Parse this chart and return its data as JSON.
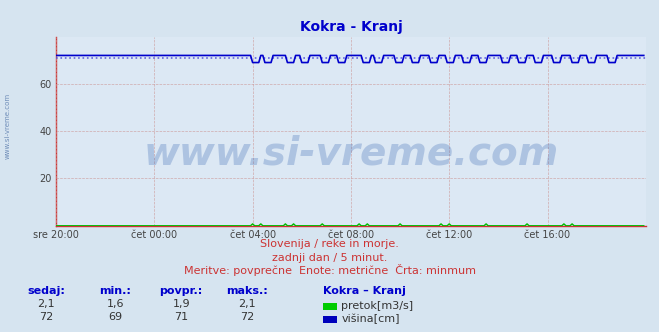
{
  "title": "Kokra - Kranj",
  "title_color": "#0000cc",
  "title_fontsize": 10,
  "bg_color": "#d6e4f0",
  "plot_bg_color": "#dce8f4",
  "ylim": [
    0,
    80
  ],
  "yticks": [
    20,
    40,
    60
  ],
  "xtick_labels": [
    "sre 20:00",
    "čet 00:00",
    "čet 04:00",
    "čet 08:00",
    "čet 12:00",
    "čet 16:00"
  ],
  "xtick_positions": [
    0,
    48,
    96,
    144,
    192,
    240
  ],
  "n_points": 288,
  "grid_color": "#cc9999",
  "vysina_color": "#0000cc",
  "vysina_dotted_color": "#5555dd",
  "vysina_min": 71,
  "vysina_base": 72,
  "vysina_dip": 69,
  "pretok_color": "#00bb00",
  "watermark": "www.si-vreme.com",
  "watermark_color": "#2255aa",
  "watermark_alpha": 0.25,
  "watermark_fontsize": 28,
  "sub1": "Slovenija / reke in morje.",
  "sub2": "zadnji dan / 5 minut.",
  "sub3": "Meritve: povprečne  Enote: metrične  Črta: minmum",
  "sub_color": "#cc3333",
  "sub_fontsize": 8,
  "legend_title": "Kokra – Kranj",
  "legend_items": [
    "pretok[m3/s]",
    "višina[cm]"
  ],
  "legend_colors": [
    "#00cc00",
    "#0000bb"
  ],
  "table_headers": [
    "sedaj:",
    "min.:",
    "povpr.:",
    "maks.:"
  ],
  "table_row1": [
    "2,1",
    "1,6",
    "1,9",
    "2,1"
  ],
  "table_row2": [
    "72",
    "69",
    "71",
    "72"
  ],
  "left_label": "www.si-vreme.com",
  "left_label_color": "#5577aa",
  "axis_color": "#cc3333",
  "header_color": "#0000cc"
}
